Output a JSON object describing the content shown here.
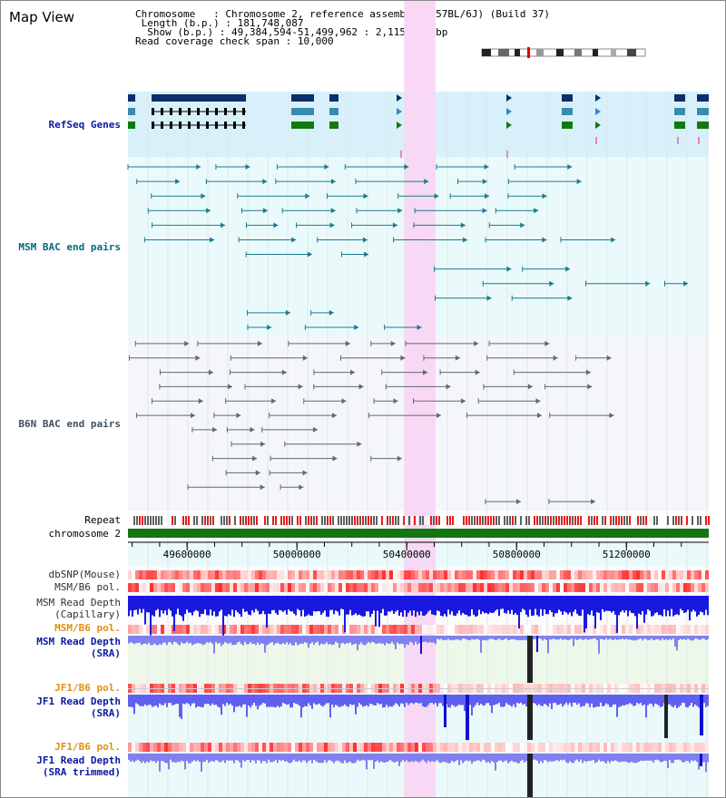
{
  "title": "Map View",
  "info": {
    "chromosome_key": "Chromosome",
    "chromosome_value": "Chromosome 2, reference assembly (C57BL/6J) (Build 37)",
    "length_key": "Length (b.p.)",
    "length_value": "181,748,087",
    "show_key": "Show (b.p.)",
    "show_value": "49,384,594-51,499,962 : 2,115,369 bp",
    "coverage_key": "Read coverage check span",
    "coverage_value": "10,000"
  },
  "view": {
    "start": 49384594,
    "end": 51499962
  },
  "highlight": {
    "start": 50390000,
    "end": 50505000
  },
  "axis": {
    "ticks": [
      49600000,
      50000000,
      50400000,
      50800000,
      51200000
    ]
  },
  "tracks": {
    "refseq": "RefSeq Genes",
    "msm_bac": "MSM BAC end pairs",
    "b6n_bac": "B6N BAC end pairs",
    "repeat": "Repeat",
    "chromosome": "chromosome 2",
    "dbsnp": "dbSNP(Mouse)",
    "msm_b6_pol": "MSM/B6 pol.",
    "msm_read_depth_cap_1": "MSM Read Depth",
    "msm_read_depth_cap_2": "(Capillary)",
    "msm_b6_pol_2": "MSM/B6 pol.",
    "msm_read_depth_sra_1": "MSM Read Depth",
    "msm_read_depth_sra_2": "(SRA)",
    "jf1_b6_pol": "JF1/B6 pol.",
    "jf1_read_depth_sra_1": "JF1 Read Depth",
    "jf1_read_depth_sra_2": "(SRA)",
    "jf1_b6_pol_2": "JF1/B6 pol.",
    "jf1_read_depth_trim_1": "JF1 Read Depth",
    "jf1_read_depth_trim_2": "(SRA trimmed)"
  },
  "colors": {
    "refseq_bg": "#d8f0fa",
    "bac_bg": "#eafafa",
    "b6n_bg": "#f4f6fa",
    "highlight": "#f8d8f4",
    "chromosome": "#127612",
    "label_blue": "#0a1aa0",
    "label_teal": "#006a80",
    "label_orange": "#e09010",
    "depth_blue": "#1818e0",
    "depth_light": "#8080f0",
    "pol_red": "#ee3030"
  }
}
